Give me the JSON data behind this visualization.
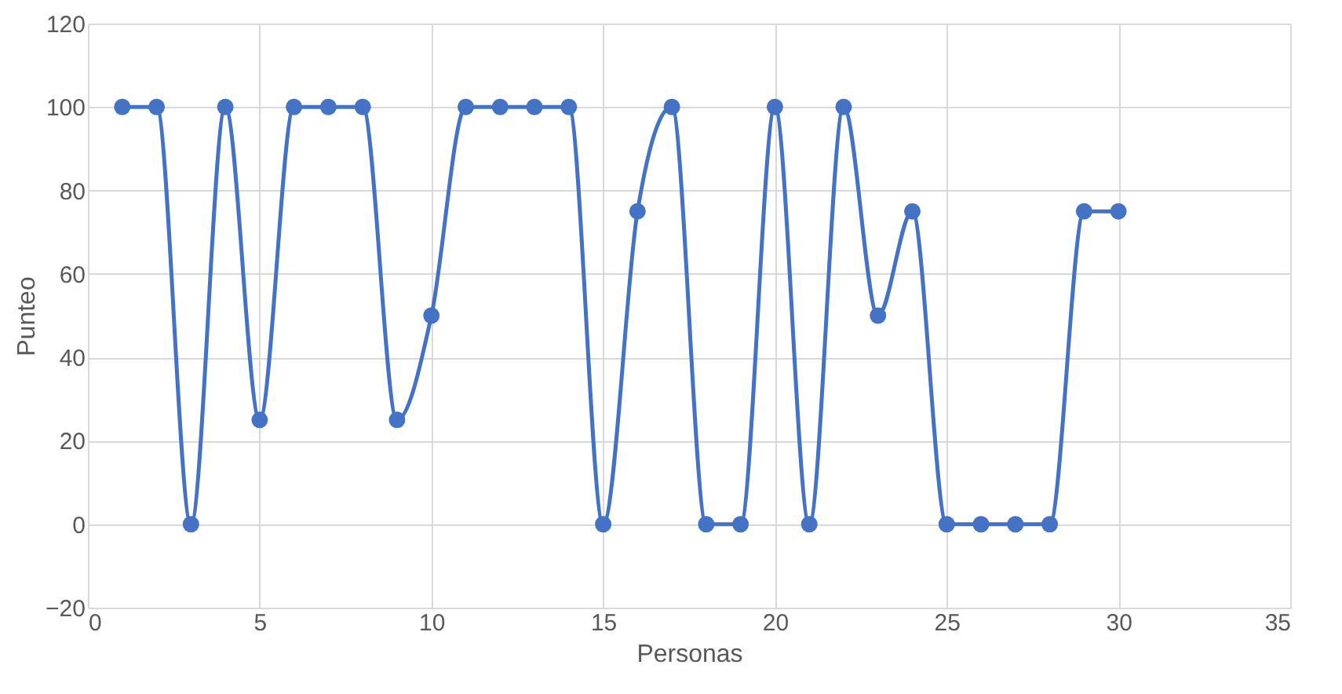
{
  "chart_data": {
    "type": "line",
    "xlabel": "Personas",
    "ylabel": "Punteo",
    "x": [
      1,
      2,
      3,
      4,
      5,
      6,
      7,
      8,
      9,
      10,
      11,
      12,
      13,
      14,
      15,
      16,
      17,
      18,
      19,
      20,
      21,
      22,
      23,
      24,
      25,
      26,
      27,
      28,
      29,
      30
    ],
    "series": [
      {
        "color": "#4472c4",
        "values": [
          100,
          100,
          0,
          100,
          25,
          100,
          100,
          100,
          25,
          50,
          100,
          100,
          100,
          100,
          0,
          75,
          100,
          0,
          0,
          100,
          0,
          100,
          50,
          75,
          0,
          0,
          0,
          0,
          75,
          75
        ]
      }
    ],
    "xlim": [
      0,
      35
    ],
    "xticks": [
      0,
      5,
      10,
      15,
      20,
      25,
      30,
      35
    ],
    "ylim": [
      -20,
      120
    ],
    "yticks": [
      -20,
      0,
      20,
      40,
      60,
      80,
      100,
      120
    ],
    "grid": true,
    "marker": "circle",
    "line_style": "solid"
  }
}
